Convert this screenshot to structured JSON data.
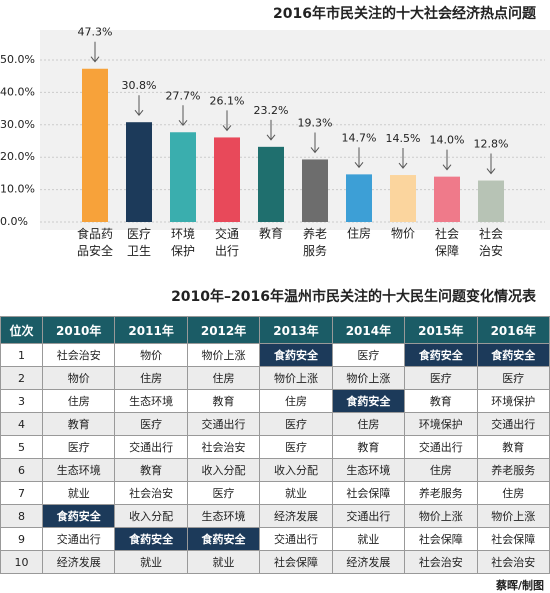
{
  "chart_data": {
    "type": "bar",
    "title": "2016年市民关注的十大社会经济热点问题",
    "categories": [
      "食品药品安全",
      "医疗卫生",
      "环境保护",
      "交通出行",
      "教育",
      "养老服务",
      "住房",
      "物价",
      "社会保障",
      "社会治安"
    ],
    "values": [
      47.3,
      30.8,
      27.7,
      26.1,
      23.2,
      19.3,
      14.7,
      14.5,
      14.0,
      12.8
    ],
    "value_labels": [
      "47.3%",
      "30.8%",
      "27.7%",
      "26.1%",
      "23.2%",
      "19.3%",
      "14.7%",
      "14.5%",
      "14.0%",
      "12.8%"
    ],
    "colors": [
      "#f7a23a",
      "#1c3a5a",
      "#3aaeae",
      "#e8495a",
      "#1f6f6e",
      "#6d6d6d",
      "#3d9fd6",
      "#fbd59e",
      "#ef7a8a",
      "#b7c3b5"
    ],
    "ylim": [
      0,
      50
    ],
    "yticks": [
      {
        "value": 0,
        "label": "0.0%"
      },
      {
        "value": 10,
        "label": "10.0%"
      },
      {
        "value": 20,
        "label": "20.0%"
      },
      {
        "value": 30,
        "label": "30.0%"
      },
      {
        "value": 40,
        "label": "40.0%"
      },
      {
        "value": 50,
        "label": "50.0%"
      }
    ],
    "grid": true
  },
  "table": {
    "title": "2010年–2016年温州市民关注的十大民生问题变化情况表",
    "header": [
      "位次",
      "2010年",
      "2011年",
      "2012年",
      "2013年",
      "2014年",
      "2015年",
      "2016年"
    ],
    "rows": [
      [
        "1",
        "社会治安",
        "物价",
        "物价上涨",
        {
          "text": "食药安全",
          "highlight": true
        },
        "医疗",
        {
          "text": "食药安全",
          "highlight": true
        },
        {
          "text": "食药安全",
          "highlight": true
        }
      ],
      [
        "2",
        "物价",
        "住房",
        "住房",
        "物价上涨",
        "物价上涨",
        "医疗",
        "医疗"
      ],
      [
        "3",
        "住房",
        "生态环境",
        "教育",
        "住房",
        {
          "text": "食药安全",
          "highlight": true
        },
        "教育",
        "环境保护"
      ],
      [
        "4",
        "教育",
        "医疗",
        "交通出行",
        "医疗",
        "住房",
        "环境保护",
        "交通出行"
      ],
      [
        "5",
        "医疗",
        "交通出行",
        "社会治安",
        "医疗",
        "教育",
        "交通出行",
        "教育"
      ],
      [
        "6",
        "生态环境",
        "教育",
        "收入分配",
        "收入分配",
        "生态环境",
        "住房",
        "养老服务"
      ],
      [
        "7",
        "就业",
        "社会治安",
        "医疗",
        "就业",
        "社会保障",
        "养老服务",
        "住房"
      ],
      [
        "8",
        {
          "text": "食药安全",
          "highlight": true
        },
        "收入分配",
        "生态环境",
        "经济发展",
        "交通出行",
        "物价上涨",
        "物价上涨"
      ],
      [
        "9",
        "交通出行",
        {
          "text": "食药安全",
          "highlight": true
        },
        {
          "text": "食药安全",
          "highlight": true
        },
        "交通出行",
        "就业",
        "社会保障",
        "社会保障"
      ],
      [
        "10",
        "经济发展",
        "就业",
        "就业",
        "社会保障",
        "经济发展",
        "社会治安",
        "社会治安"
      ]
    ]
  },
  "credit": "蔡晖/制图"
}
